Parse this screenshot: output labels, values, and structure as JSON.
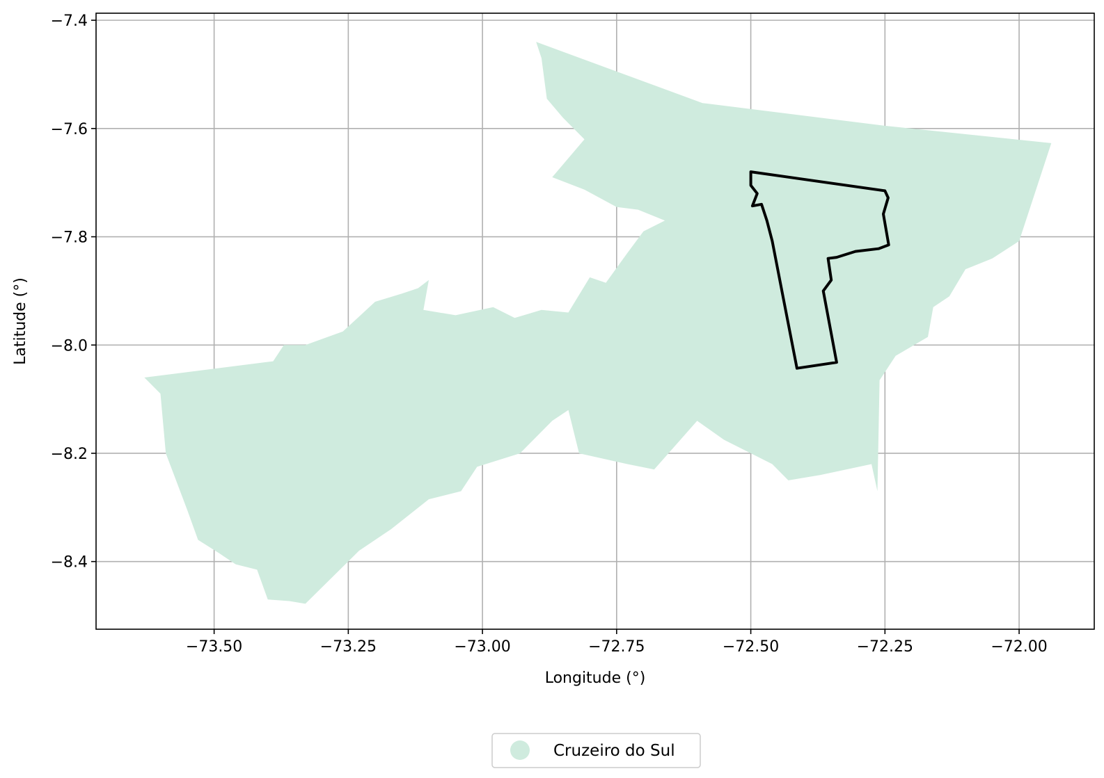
{
  "chart_data": {
    "type": "map",
    "xlabel": "Longitude (°)",
    "ylabel": "Latitude (°)",
    "xlim": [
      -73.72,
      -71.86
    ],
    "ylim": [
      -8.525,
      -7.387
    ],
    "x_ticks": [
      -73.5,
      -73.25,
      -73.0,
      -72.75,
      -72.5,
      -72.25,
      -72.0
    ],
    "x_tick_labels": [
      "−73.50",
      "−73.25",
      "−73.00",
      "−72.75",
      "−72.50",
      "−72.25",
      "−72.00"
    ],
    "y_ticks": [
      -7.4,
      -7.6,
      -7.8,
      -8.0,
      -8.2,
      -8.4
    ],
    "y_tick_labels": [
      "−7.4",
      "−7.6",
      "−7.8",
      "−8.0",
      "−8.2",
      "−8.4"
    ],
    "grid": true,
    "legend": {
      "placement": "bottom-center",
      "entries": [
        "Cruzeiro do Sul"
      ]
    },
    "colors": {
      "region_fill": "#cfebde",
      "boundary_stroke": "#000000",
      "grid": "#b0b0b0"
    },
    "series": [
      {
        "name": "Cruzeiro do Sul",
        "kind": "filled-polygon",
        "points": [
          [
            -72.9,
            -7.44
          ],
          [
            -72.59,
            -7.553
          ],
          [
            -72.25,
            -7.595
          ],
          [
            -71.94,
            -7.627
          ],
          [
            -72.0,
            -7.808
          ],
          [
            -72.05,
            -7.84
          ],
          [
            -72.1,
            -7.86
          ],
          [
            -72.13,
            -7.91
          ],
          [
            -72.16,
            -7.93
          ],
          [
            -72.17,
            -7.985
          ],
          [
            -72.23,
            -8.02
          ],
          [
            -72.26,
            -8.065
          ],
          [
            -72.264,
            -8.27
          ],
          [
            -72.275,
            -8.22
          ],
          [
            -72.37,
            -8.24
          ],
          [
            -72.43,
            -8.25
          ],
          [
            -72.46,
            -8.22
          ],
          [
            -72.55,
            -8.175
          ],
          [
            -72.6,
            -8.14
          ],
          [
            -72.68,
            -8.23
          ],
          [
            -72.73,
            -8.22
          ],
          [
            -72.82,
            -8.2
          ],
          [
            -72.84,
            -8.12
          ],
          [
            -72.87,
            -8.14
          ],
          [
            -72.93,
            -8.2
          ],
          [
            -73.01,
            -8.225
          ],
          [
            -73.04,
            -8.27
          ],
          [
            -73.1,
            -8.285
          ],
          [
            -73.17,
            -8.34
          ],
          [
            -73.23,
            -8.38
          ],
          [
            -73.33,
            -8.478
          ],
          [
            -73.36,
            -8.473
          ],
          [
            -73.4,
            -8.47
          ],
          [
            -73.42,
            -8.415
          ],
          [
            -73.46,
            -8.405
          ],
          [
            -73.49,
            -8.385
          ],
          [
            -73.53,
            -8.36
          ],
          [
            -73.55,
            -8.305
          ],
          [
            -73.59,
            -8.2
          ],
          [
            -73.6,
            -8.09
          ],
          [
            -73.63,
            -8.06
          ],
          [
            -73.39,
            -8.03
          ],
          [
            -73.37,
            -8.0
          ],
          [
            -73.33,
            -8.0
          ],
          [
            -73.26,
            -7.975
          ],
          [
            -73.2,
            -7.92
          ],
          [
            -73.15,
            -7.905
          ],
          [
            -73.12,
            -7.895
          ],
          [
            -73.1,
            -7.88
          ],
          [
            -73.11,
            -7.935
          ],
          [
            -73.05,
            -7.945
          ],
          [
            -72.98,
            -7.93
          ],
          [
            -72.94,
            -7.95
          ],
          [
            -72.89,
            -7.935
          ],
          [
            -72.84,
            -7.94
          ],
          [
            -72.8,
            -7.875
          ],
          [
            -72.77,
            -7.885
          ],
          [
            -72.73,
            -7.83
          ],
          [
            -72.7,
            -7.79
          ],
          [
            -72.66,
            -7.77
          ],
          [
            -72.71,
            -7.75
          ],
          [
            -72.75,
            -7.745
          ],
          [
            -72.81,
            -7.713
          ],
          [
            -72.87,
            -7.69
          ],
          [
            -72.81,
            -7.62
          ],
          [
            -72.85,
            -7.58
          ],
          [
            -72.88,
            -7.545
          ],
          [
            -72.89,
            -7.47
          ]
        ]
      },
      {
        "name": "",
        "kind": "outline",
        "points": [
          [
            -72.5,
            -7.68
          ],
          [
            -72.25,
            -7.715
          ],
          [
            -72.244,
            -7.728
          ],
          [
            -72.253,
            -7.758
          ],
          [
            -72.243,
            -7.815
          ],
          [
            -72.262,
            -7.822
          ],
          [
            -72.305,
            -7.827
          ],
          [
            -72.34,
            -7.838
          ],
          [
            -72.356,
            -7.84
          ],
          [
            -72.35,
            -7.88
          ],
          [
            -72.365,
            -7.9
          ],
          [
            -72.34,
            -8.032
          ],
          [
            -72.414,
            -8.043
          ],
          [
            -72.44,
            -7.91
          ],
          [
            -72.46,
            -7.808
          ],
          [
            -72.47,
            -7.77
          ],
          [
            -72.48,
            -7.74
          ],
          [
            -72.497,
            -7.743
          ],
          [
            -72.488,
            -7.72
          ],
          [
            -72.5,
            -7.705
          ]
        ]
      }
    ]
  }
}
